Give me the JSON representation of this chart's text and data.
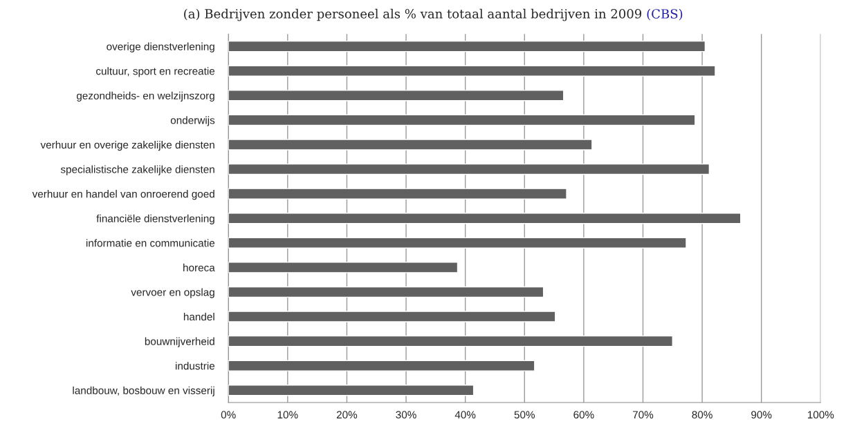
{
  "chart_data": {
    "type": "bar",
    "orientation": "horizontal",
    "title": "(a) Bedrijven zonder personeel als % van totaal aantal bedrijven in 2009",
    "annotations": [
      "(CBS)"
    ],
    "categories": [
      "overige dienstverlening",
      "cultuur, sport en recreatie",
      "gezondheids- en welzijnszorg",
      "onderwijs",
      "verhuur en overige zakelijke diensten",
      "specialistische zakelijke diensten",
      "verhuur en handel van onroerend goed",
      "financiële dienstverlening",
      "informatie en communicatie",
      "horeca",
      "vervoer en opslag",
      "handel",
      "bouwnijverheid",
      "industrie",
      "landbouw, bosbouw en visserij"
    ],
    "values": [
      80.5,
      82.2,
      56.6,
      78.8,
      61.4,
      81.2,
      57.1,
      86.5,
      77.3,
      38.7,
      53.2,
      55.2,
      75.0,
      51.7,
      41.4
    ],
    "color": "#606060",
    "xlim": [
      0,
      100
    ],
    "xticks": [
      {
        "value": 0,
        "label": "0%"
      },
      {
        "value": 10,
        "label": "10%"
      },
      {
        "value": 20,
        "label": "20%"
      },
      {
        "value": 30,
        "label": "30%"
      },
      {
        "value": 40,
        "label": "40%"
      },
      {
        "value": 50,
        "label": "50%"
      },
      {
        "value": 60,
        "label": "60%"
      },
      {
        "value": 70,
        "label": "70%"
      },
      {
        "value": 80,
        "label": "80%"
      },
      {
        "value": 90,
        "label": "90%"
      },
      {
        "value": 100,
        "label": "100%"
      }
    ],
    "grid": "x"
  }
}
